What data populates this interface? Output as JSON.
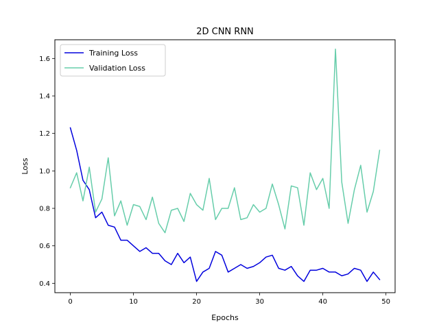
{
  "chart_data": {
    "type": "line",
    "title": "2D CNN RNN",
    "xlabel": "Epochs",
    "ylabel": "Loss",
    "xlim": [
      -2.45,
      51.45
    ],
    "ylim": [
      0.35,
      1.7
    ],
    "xticks": [
      0,
      10,
      20,
      30,
      40,
      50
    ],
    "xtick_labels": [
      "0",
      "10",
      "20",
      "30",
      "40",
      "50"
    ],
    "yticks": [
      0.4,
      0.6,
      0.8,
      1.0,
      1.2,
      1.4,
      1.6
    ],
    "ytick_labels": [
      "0.4",
      "0.6",
      "0.8",
      "1.0",
      "1.2",
      "1.4",
      "1.6"
    ],
    "grid": false,
    "legend_position": "upper-left",
    "x": [
      0,
      1,
      2,
      3,
      4,
      5,
      6,
      7,
      8,
      9,
      10,
      11,
      12,
      13,
      14,
      15,
      16,
      17,
      18,
      19,
      20,
      21,
      22,
      23,
      24,
      25,
      26,
      27,
      28,
      29,
      30,
      31,
      32,
      33,
      34,
      35,
      36,
      37,
      38,
      39,
      40,
      41,
      42,
      43,
      44,
      45,
      46,
      47,
      48,
      49
    ],
    "series": [
      {
        "name": "Training Loss",
        "color": "#0000dd",
        "values": [
          1.23,
          1.11,
          0.95,
          0.9,
          0.75,
          0.78,
          0.71,
          0.7,
          0.63,
          0.63,
          0.6,
          0.57,
          0.59,
          0.56,
          0.56,
          0.52,
          0.5,
          0.56,
          0.51,
          0.54,
          0.41,
          0.46,
          0.48,
          0.57,
          0.55,
          0.46,
          0.48,
          0.5,
          0.48,
          0.49,
          0.51,
          0.54,
          0.55,
          0.48,
          0.47,
          0.49,
          0.44,
          0.41,
          0.47,
          0.47,
          0.48,
          0.46,
          0.46,
          0.44,
          0.45,
          0.48,
          0.47,
          0.41,
          0.46,
          0.42
        ]
      },
      {
        "name": "Validation Loss",
        "color": "#66cdaa",
        "values": [
          0.91,
          0.99,
          0.84,
          1.02,
          0.78,
          0.85,
          1.07,
          0.76,
          0.84,
          0.71,
          0.82,
          0.81,
          0.74,
          0.86,
          0.72,
          0.67,
          0.79,
          0.8,
          0.73,
          0.88,
          0.82,
          0.79,
          0.96,
          0.74,
          0.8,
          0.8,
          0.91,
          0.74,
          0.75,
          0.82,
          0.78,
          0.8,
          0.93,
          0.82,
          0.69,
          0.92,
          0.91,
          0.71,
          0.99,
          0.9,
          0.96,
          0.8,
          1.65,
          0.94,
          0.72,
          0.9,
          1.03,
          0.78,
          0.89,
          1.11
        ]
      }
    ]
  }
}
